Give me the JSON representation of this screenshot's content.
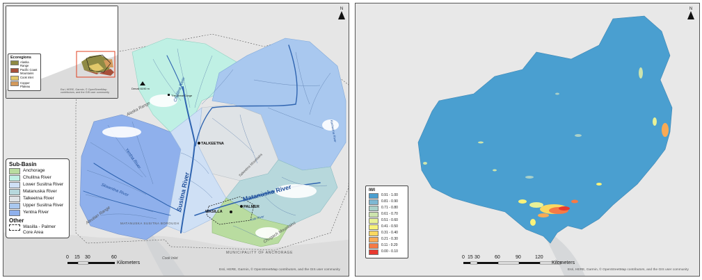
{
  "left_map": {
    "inset": {
      "legend_title": "Ecoregions",
      "items": [
        {
          "label": "Alaska Range",
          "color": "#8f8a44"
        },
        {
          "label": "Pacific Coast Mountains",
          "color": "#a8503a"
        },
        {
          "label": "Cook Inlet",
          "color": "#e2c86a"
        },
        {
          "label": "Copper Plateau",
          "color": "#d49a5c"
        }
      ],
      "attribution": "Esri, HERE, Garmin, © OpenStreetMap contributors, and the GIS user community"
    },
    "legend": {
      "title": "Sub-Basin",
      "items": [
        {
          "label": "Anchorage",
          "color": "#b9dca0"
        },
        {
          "label": "Chulitna River",
          "color": "#bff0e4"
        },
        {
          "label": "Lower Susitna River",
          "color": "#cfe0f5"
        },
        {
          "label": "Matanuska River",
          "color": "#b7d8dc"
        },
        {
          "label": "Talkeetna River",
          "color": "#dfe3e6"
        },
        {
          "label": "Upper Susitna River",
          "color": "#a9c8ef"
        },
        {
          "label": "Yentna River",
          "color": "#8fb0ec"
        }
      ],
      "other_title": "Other",
      "other_item": "Wasilla - Palmer Core Area"
    },
    "labels": {
      "susitna": "Susitna River",
      "matanuska": "Matanuska River",
      "yentna": "Yentna River",
      "skwentna": "Skwentna River",
      "chulitna": "Chulitna River",
      "kashwitna": "Kashwitna River",
      "talkeetna": "TALKEETNA",
      "wasilla": "WASILLA",
      "palmer": "PALMER",
      "denali": "Denali 6190 m",
      "great_gorge": "The Great Gorge",
      "borough": "MATANUSKA SUSITNA BOROUGH",
      "muni": "MUNICIPALITY OF ANCHORAGE",
      "alaska_range": "Alaska Range",
      "aleutian_range": "Aleutian Range",
      "chugach": "Chugach Mountains",
      "talkeetna_mtns": "Talkeetna Mountains",
      "cook_inlet": "Cook Inlet",
      "knik": "Knik River"
    },
    "scale": {
      "ticks": [
        "0",
        "15",
        "30",
        "60"
      ],
      "unit": "Kilometers"
    },
    "attribution": "Esri, HERE, Garmin, © OpenStreetMap contributors, and the GIS user community",
    "north": "N"
  },
  "right_map": {
    "legend": {
      "title": "IWI",
      "items": [
        {
          "label": "0.91 - 1.00",
          "color": "#4a9fd0"
        },
        {
          "label": "0.81 - 0.90",
          "color": "#7db8d3"
        },
        {
          "label": "0.71 - 0.80",
          "color": "#a9d0c8"
        },
        {
          "label": "0.61 - 0.70",
          "color": "#cde4ad"
        },
        {
          "label": "0.51 - 0.60",
          "color": "#e8f197"
        },
        {
          "label": "0.41 - 0.50",
          "color": "#f8f27a"
        },
        {
          "label": "0.31 - 0.40",
          "color": "#fbd860"
        },
        {
          "label": "0.21 - 0.30",
          "color": "#f9aa55"
        },
        {
          "label": "0.11 - 0.20",
          "color": "#f57a45"
        },
        {
          "label": "0.00 - 0.10",
          "color": "#e8392f"
        }
      ]
    },
    "scale": {
      "ticks": [
        "0",
        "15",
        "30",
        "60",
        "90",
        "120"
      ],
      "unit": "Kilometers"
    },
    "attribution": "Esri, HERE, Garmin, © OpenStreetMap contributors, and the GIS user community",
    "north": "N"
  }
}
